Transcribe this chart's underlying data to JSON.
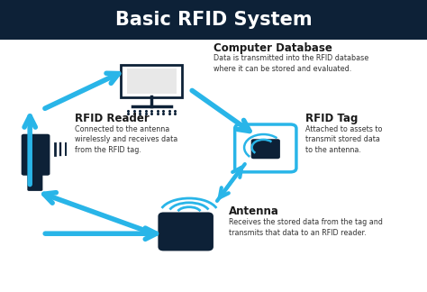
{
  "title": "Basic RFID System",
  "title_color": "#FFFFFF",
  "title_bg_color": "#0d2137",
  "bg_color": "#FFFFFF",
  "arrow_color": "#29b5e8",
  "icon_dark_color": "#0d2137",
  "labels": {
    "computer": "Computer Database",
    "computer_desc": "Data is transmitted into the RFID database\nwhere it can be stored and evaluated.",
    "reader": "RFID Reader",
    "reader_desc": "Connected to the antenna\nwirelessly and receives data\nfrom the RFID tag.",
    "tag": "RFID Tag",
    "tag_desc": "Attached to assets to\ntransmit stored data\nto the antenna.",
    "antenna": "Antenna",
    "antenna_desc": "Receives the stored data from the tag and\ntransmits that data to an RFID reader."
  }
}
